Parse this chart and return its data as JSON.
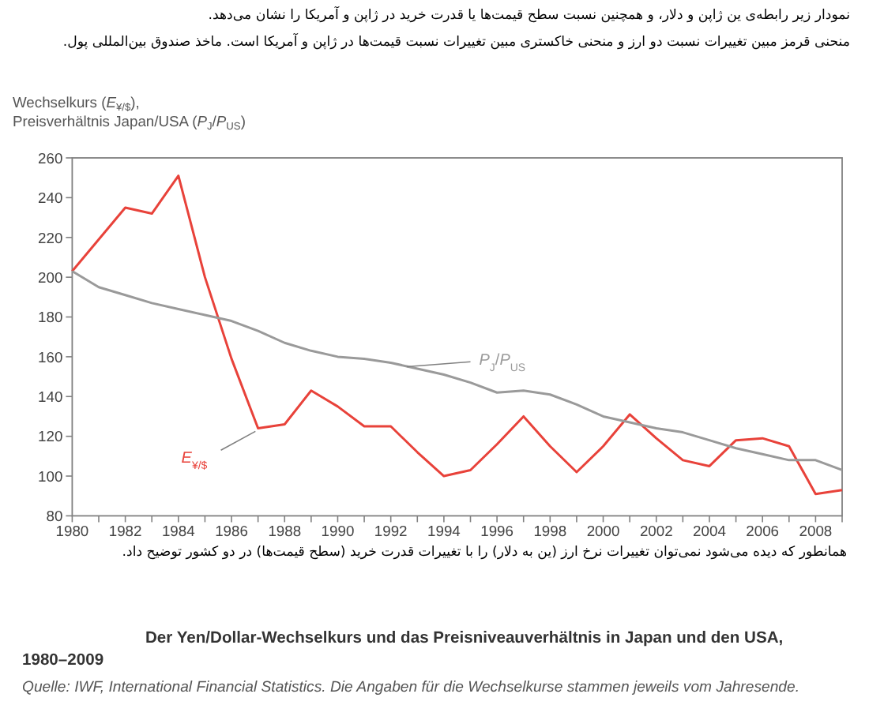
{
  "chart_data": {
    "type": "line",
    "title": "Der Yen/Dollar-Wechselkurs und das Preisniveauverhältnis in Japan und den USA, 1980–2009",
    "subtitle": "نمودار زیر رابطه‌ی ین ژاپن و دلار، و همچنین نسبت سطح قیمت‌ها یا قدرت خرید در ژاپن و آمریکا را نشان می‌دهد.",
    "annotations": [
      "منحنی قرمز مبین تغییرات نسبت دو ارز و منحنی خاکستری مبین تغییرات نسبت قیمت‌ها در ژاپن و آمریکا است. ماخذ صندوق بین‌المللی پول.",
      "همانطور که دیده می‌شود نمی‌توان تغییرات نرخ ارز (ین به دلار) را با تغییرات قدرت خرید (سطح قیمت‌ها) در دو کشور توضیح داد.",
      "Quelle: IWF, International Financial Statistics. Die Angaben für die Wechselkurse stammen jeweils vom Jahresende."
    ],
    "ylabel": "Wechselkurs (*E*$_{¥/$}$), Preisverhältnis Japan/USA (*P*$_{J}$/*P*$_{US}$)",
    "x": [
      1980,
      1981,
      1982,
      1983,
      1984,
      1985,
      1986,
      1987,
      1988,
      1989,
      1990,
      1991,
      1992,
      1993,
      1994,
      1995,
      1996,
      1997,
      1998,
      1999,
      2000,
      2001,
      2002,
      2003,
      2004,
      2005,
      2006,
      2007,
      2008,
      2009
    ],
    "series": [
      {
        "name": "*E*$_{¥/$}$",
        "color": "#e8423a",
        "values": [
          203,
          219,
          235,
          232,
          251,
          200,
          159,
          124,
          126,
          143,
          135,
          125,
          125,
          112,
          100,
          103,
          116,
          130,
          115,
          102,
          115,
          131,
          119,
          108,
          105,
          118,
          119,
          115,
          91,
          93
        ]
      },
      {
        "name": "*P*$_{J}$/*P*$_{US}$",
        "color": "#9a9a9a",
        "values": [
          203,
          195,
          191,
          187,
          184,
          181,
          178,
          173,
          167,
          163,
          160,
          159,
          157,
          154,
          151,
          147,
          142,
          143,
          141,
          136,
          130,
          127,
          124,
          122,
          118,
          114,
          111,
          108,
          108,
          103
        ]
      }
    ],
    "xlim": [
      1980,
      2009
    ],
    "xticks": [
      1980,
      1982,
      1984,
      1986,
      1988,
      1990,
      1992,
      1994,
      1996,
      1998,
      2000,
      2002,
      2004,
      2006,
      2008
    ],
    "ylim": [
      80,
      260
    ],
    "yticks": [
      80,
      100,
      120,
      140,
      160,
      180,
      200,
      220,
      240,
      260
    ],
    "legend": false,
    "marker": "none",
    "line_style": "solid"
  }
}
